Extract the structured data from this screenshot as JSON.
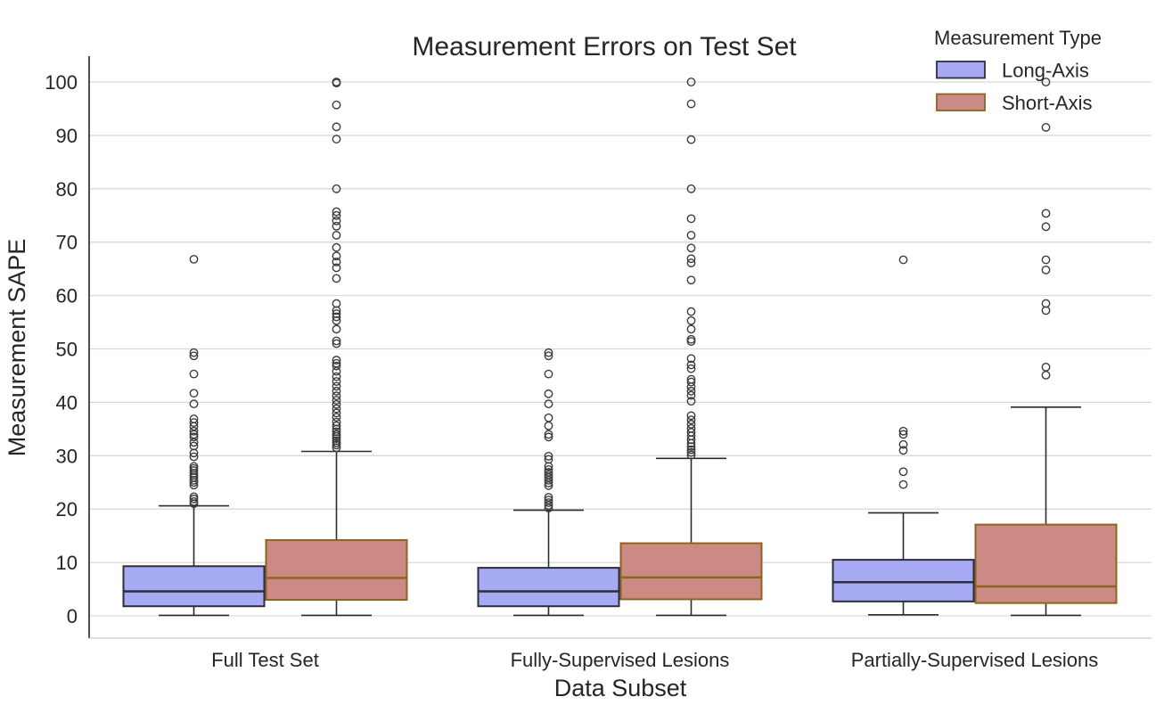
{
  "chart_data": {
    "type": "boxplot",
    "title": "Measurement Errors on Test Set",
    "xlabel": "Data Subset",
    "ylabel": "Measurement SAPE",
    "legend_title": "Measurement Type",
    "legend_position": "upper right",
    "grid": "horizontal",
    "ylim": [
      0,
      100
    ],
    "yticks": [
      0,
      10,
      20,
      30,
      40,
      50,
      60,
      70,
      80,
      90,
      100
    ],
    "categories": [
      "Full Test Set",
      "Fully-Supervised Lesions",
      "Partially-Supervised Lesions"
    ],
    "series": [
      {
        "name": "Long-Axis",
        "fill": "#a6aaf2",
        "edge": "#2d2d3d",
        "boxes": [
          {
            "whislo": 0.1,
            "q1": 1.8,
            "med": 4.6,
            "q3": 9.3,
            "whishi": 20.6,
            "outliers": [
              21.0,
              21.4,
              21.9,
              22.3,
              24.5,
              25.0,
              25.4,
              25.9,
              26.3,
              26.7,
              27.2,
              27.6,
              28.0,
              29.8,
              30.5,
              31.8,
              32.5,
              33.5,
              34.0,
              34.6,
              35.5,
              36.2,
              36.9,
              39.7,
              41.7,
              45.3,
              48.7,
              49.3,
              66.8
            ]
          },
          {
            "whislo": 0.1,
            "q1": 1.8,
            "med": 4.6,
            "q3": 9.0,
            "whishi": 19.8,
            "outliers": [
              20.2,
              20.7,
              21.2,
              21.7,
              22.2,
              24.4,
              24.9,
              25.4,
              25.9,
              26.4,
              26.9,
              27.4,
              28.0,
              29.3,
              29.9,
              33.5,
              34.0,
              35.6,
              37.1,
              39.7,
              41.6,
              45.3,
              48.7,
              49.3
            ]
          },
          {
            "whislo": 0.2,
            "q1": 2.7,
            "med": 6.3,
            "q3": 10.5,
            "whishi": 19.3,
            "outliers": [
              24.6,
              27.0,
              31.0,
              32.1,
              34.0,
              34.6,
              66.7
            ]
          }
        ]
      },
      {
        "name": "Short-Axis",
        "fill": "#cb8a84",
        "edge": "#8c6420",
        "boxes": [
          {
            "whislo": 0.1,
            "q1": 3.0,
            "med": 7.1,
            "q3": 14.2,
            "whishi": 30.8,
            "outliers": [
              31.5,
              32.0,
              32.4,
              32.8,
              33.2,
              33.6,
              34.0,
              34.5,
              35.0,
              35.6,
              36.3,
              37.2,
              38.0,
              38.8,
              39.6,
              40.4,
              41.2,
              42.1,
              43.0,
              43.9,
              44.8,
              45.8,
              46.8,
              47.3,
              47.9,
              51.0,
              51.5,
              53.7,
              55.3,
              56.0,
              56.6,
              57.2,
              58.5,
              63.2,
              65.2,
              66.3,
              67.4,
              69.0,
              71.3,
              73.0,
              74.0,
              75.0,
              75.7,
              80.0,
              89.3,
              91.6,
              95.7,
              99.8,
              100.0
            ]
          },
          {
            "whislo": 0.1,
            "q1": 3.1,
            "med": 7.2,
            "q3": 13.6,
            "whishi": 29.5,
            "outliers": [
              30.1,
              30.6,
              31.1,
              31.7,
              32.3,
              33.0,
              33.7,
              34.4,
              35.1,
              35.9,
              36.7,
              37.5,
              40.2,
              41.3,
              42.1,
              42.9,
              43.8,
              44.3,
              46.3,
              47.0,
              48.2,
              51.4,
              51.8,
              53.7,
              55.3,
              57.0,
              62.9,
              66.1,
              66.9,
              68.9,
              71.3,
              74.4,
              80.0,
              89.2,
              95.9,
              100.0
            ]
          },
          {
            "whislo": 0.1,
            "q1": 2.4,
            "med": 5.5,
            "q3": 17.1,
            "whishi": 39.1,
            "outliers": [
              45.1,
              46.6,
              57.2,
              58.5,
              64.8,
              66.7,
              72.9,
              75.4,
              91.5,
              100.0
            ]
          }
        ]
      }
    ],
    "style": {
      "grid_color": "#d9d9d9",
      "spine_color": "#3b3b3b",
      "bottom_border_color": "#cccccc",
      "whisker_color": "#2b2b2b",
      "outlier_color": "#3c3c3c",
      "text_color": "#262626"
    }
  }
}
